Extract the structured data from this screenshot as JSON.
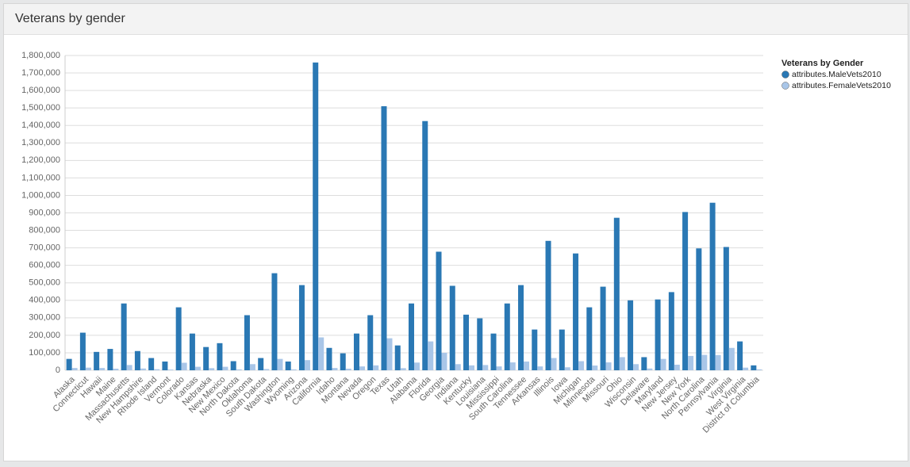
{
  "chart_data": {
    "type": "bar",
    "title": "Veterans by gender",
    "legend_title": "Veterans by Gender",
    "categories": [
      "Alaska",
      "Connecticut",
      "Hawaii",
      "Maine",
      "Massachusetts",
      "New Hampshire",
      "Rhode Island",
      "Vermont",
      "Colorado",
      "Kansas",
      "Nebraska",
      "New Mexico",
      "North Dakota",
      "Oklahoma",
      "South Dakota",
      "Washington",
      "Wyoming",
      "Arizona",
      "California",
      "Idaho",
      "Montana",
      "Nevada",
      "Oregon",
      "Texas",
      "Utah",
      "Alabama",
      "Florida",
      "Georgia",
      "Indiana",
      "Kentucky",
      "Louisiana",
      "Mississippi",
      "South Carolina",
      "Tennessee",
      "Arkansas",
      "Illinois",
      "Iowa",
      "Michigan",
      "Minnesota",
      "Missouri",
      "Ohio",
      "Wisconsin",
      "Delaware",
      "Maryland",
      "New Jersey",
      "New York",
      "North Carolina",
      "Pennsylvania",
      "Virginia",
      "West Virginia",
      "District of Columbia"
    ],
    "series": [
      {
        "name": "attributes.MaleVets2010",
        "color": "#2a78b4",
        "values": [
          65000,
          215000,
          105000,
          122000,
          382000,
          110000,
          70000,
          50000,
          360000,
          210000,
          133000,
          155000,
          52000,
          315000,
          70000,
          555000,
          50000,
          487000,
          1760000,
          128000,
          97000,
          210000,
          315000,
          1510000,
          142000,
          382000,
          1425000,
          678000,
          483000,
          318000,
          297000,
          210000,
          382000,
          487000,
          233000,
          740000,
          233000,
          668000,
          360000,
          478000,
          872000,
          400000,
          75000,
          405000,
          447000,
          905000,
          697000,
          958000,
          705000,
          165000,
          28000
        ]
      },
      {
        "name": "attributes.FemaleVets2010",
        "color": "#a9c6e8",
        "values": [
          13000,
          15000,
          13000,
          9000,
          30000,
          10000,
          6000,
          4000,
          43000,
          20000,
          12000,
          20000,
          5000,
          35000,
          7000,
          65000,
          5000,
          58000,
          188000,
          13000,
          9000,
          22000,
          28000,
          183000,
          12000,
          44000,
          165000,
          100000,
          35000,
          28000,
          30000,
          22000,
          45000,
          50000,
          22000,
          70000,
          17000,
          52000,
          27000,
          45000,
          75000,
          35000,
          10000,
          65000,
          32000,
          82000,
          88000,
          87000,
          128000,
          15000,
          5000
        ]
      }
    ],
    "ylim": [
      0,
      1800000
    ],
    "yticks": [
      {
        "value": 0,
        "label": "0"
      },
      {
        "value": 100000,
        "label": "100,000"
      },
      {
        "value": 200000,
        "label": "200,000"
      },
      {
        "value": 300000,
        "label": "300,000"
      },
      {
        "value": 400000,
        "label": "400,000"
      },
      {
        "value": 500000,
        "label": "500,000"
      },
      {
        "value": 600000,
        "label": "600,000"
      },
      {
        "value": 700000,
        "label": "700,000"
      },
      {
        "value": 800000,
        "label": "800,000"
      },
      {
        "value": 900000,
        "label": "900,000"
      },
      {
        "value": 1000000,
        "label": "1,000,000"
      },
      {
        "value": 1100000,
        "label": "1,100,000"
      },
      {
        "value": 1200000,
        "label": "1,200,000"
      },
      {
        "value": 1300000,
        "label": "1,300,000"
      },
      {
        "value": 1400000,
        "label": "1,400,000"
      },
      {
        "value": 1500000,
        "label": "1,500,000"
      },
      {
        "value": 1600000,
        "label": "1,600,000"
      },
      {
        "value": 1700000,
        "label": "1,700,000"
      },
      {
        "value": 1800000,
        "label": "1,800,000"
      }
    ],
    "grid": true,
    "legend": "top-right"
  }
}
